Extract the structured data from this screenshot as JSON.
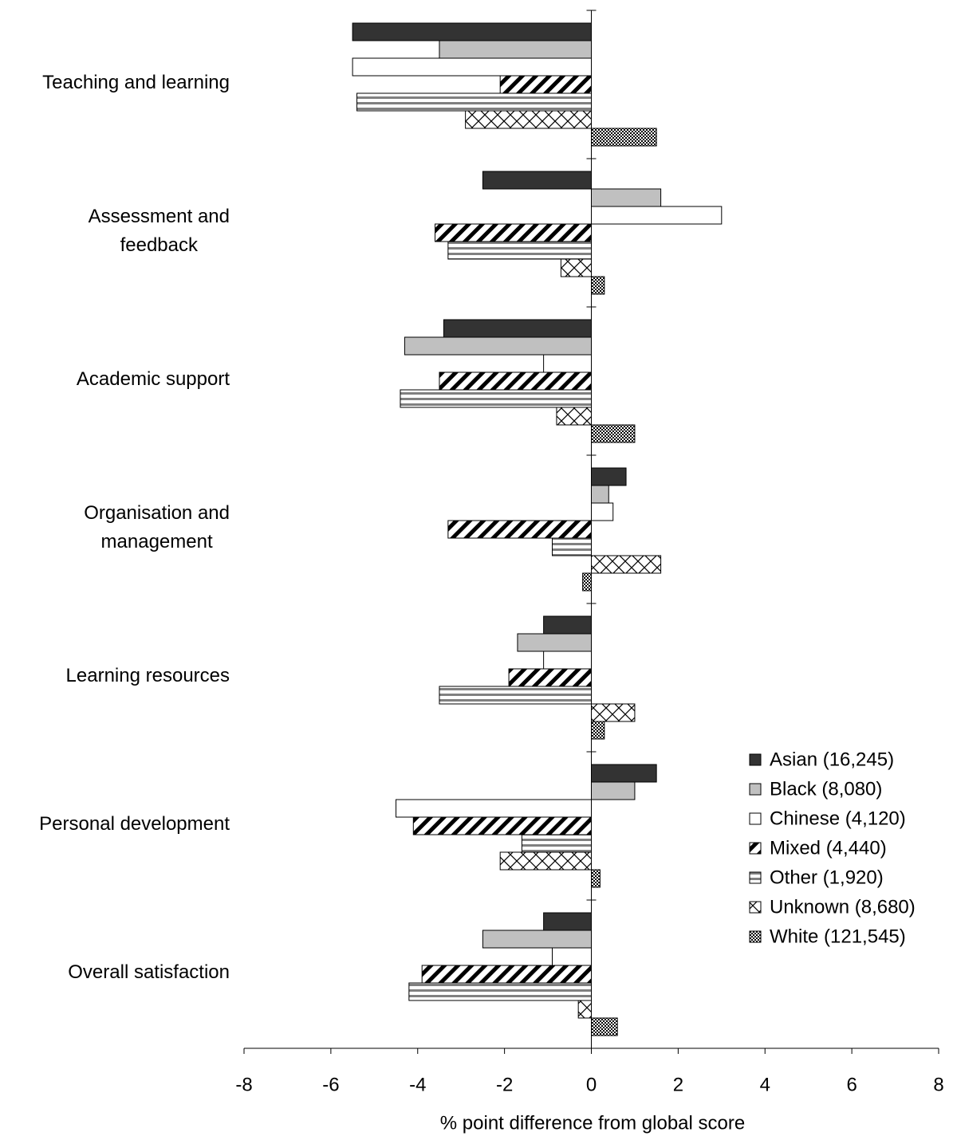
{
  "chart_data": {
    "type": "hbar",
    "x_label": "% point difference from global score",
    "categories": [
      "Teaching and learning",
      "Assessment and\nfeedback",
      "Academic support",
      "Organisation and\nmanagement",
      "Learning resources",
      "Personal development",
      "Overall satisfaction"
    ],
    "series": [
      {
        "name": "Asian (16,245)",
        "color": "#333333",
        "pattern": "solid",
        "values": [
          -5.5,
          -2.5,
          -3.4,
          0.8,
          -1.1,
          1.5,
          -1.1
        ]
      },
      {
        "name": "Black (8,080)",
        "color": "#c0c0c0",
        "pattern": "solid",
        "values": [
          -3.5,
          1.6,
          -4.3,
          0.4,
          -1.7,
          1.0,
          -2.5
        ]
      },
      {
        "name": "Chinese (4,120)",
        "color": "#ffffff",
        "pattern": "solid",
        "values": [
          -5.5,
          3.0,
          -1.1,
          0.5,
          -1.1,
          -4.5,
          -0.9
        ]
      },
      {
        "name": "Mixed (4,440)",
        "color": "#000000",
        "pattern": "diagonal",
        "values": [
          -2.1,
          -3.6,
          -3.5,
          -3.3,
          -1.9,
          -4.1,
          -3.9
        ]
      },
      {
        "name": "Other (1,920)",
        "color": "#808080",
        "pattern": "horizontal",
        "values": [
          -5.4,
          -3.3,
          -4.4,
          -0.9,
          -3.5,
          -1.6,
          -4.2
        ]
      },
      {
        "name": "Unknown (8,680)",
        "color": "#000000",
        "pattern": "crosshatch",
        "values": [
          -2.9,
          -0.7,
          -0.8,
          1.6,
          1.0,
          -2.1,
          -0.3
        ]
      },
      {
        "name": "White (121,545)",
        "color": "#000000",
        "pattern": "checker",
        "values": [
          1.5,
          0.3,
          1.0,
          -0.2,
          0.3,
          0.2,
          0.6
        ]
      }
    ],
    "xlim": [
      -8,
      8
    ],
    "xticks": [
      -8,
      -6,
      -4,
      -2,
      0,
      2,
      4,
      6,
      8
    ],
    "legend": "lower right"
  }
}
